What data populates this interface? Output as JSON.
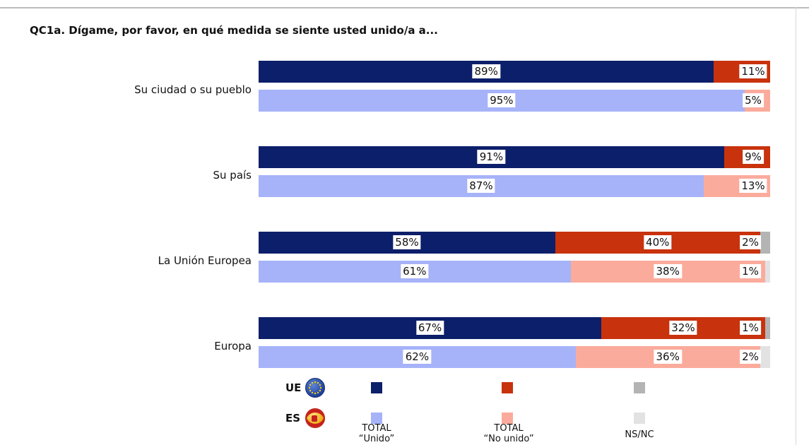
{
  "chart_data": {
    "type": "bar",
    "orientation": "horizontal",
    "stacked": true,
    "title": "QC1a. Dígame, por favor, en qué medida se siente usted unido/a a...",
    "categories": [
      "Su ciudad o su pueblo",
      "Su país",
      "La Unión Europea",
      "Europa"
    ],
    "groups": [
      "UE",
      "ES"
    ],
    "series": [
      {
        "name": "TOTAL \"Unido\"",
        "values": {
          "UE": [
            89,
            91,
            58,
            67
          ],
          "ES": [
            95,
            87,
            61,
            62
          ]
        }
      },
      {
        "name": "TOTAL \"No unido\"",
        "values": {
          "UE": [
            11,
            9,
            40,
            32
          ],
          "ES": [
            5,
            13,
            38,
            36
          ]
        }
      },
      {
        "name": "NS/NC",
        "values": {
          "UE": [
            0,
            0,
            2,
            1
          ],
          "ES": [
            0,
            0,
            1,
            2
          ]
        }
      }
    ],
    "value_labels": {
      "UE": [
        [
          "89%",
          "11%",
          ""
        ],
        [
          "91%",
          "9%",
          ""
        ],
        [
          "58%",
          "40%",
          "2%"
        ],
        [
          "67%",
          "32%",
          "1%"
        ]
      ],
      "ES": [
        [
          "95%",
          "5%",
          ""
        ],
        [
          "87%",
          "13%",
          ""
        ],
        [
          "61%",
          "38%",
          "1%"
        ],
        [
          "62%",
          "36%",
          "2%"
        ]
      ]
    },
    "xlim": [
      0,
      100
    ],
    "legend": {
      "position": "bottom",
      "rows": [
        {
          "code": "UE",
          "flag": "eu-flag-icon"
        },
        {
          "code": "ES",
          "flag": "spain-flag-icon"
        }
      ],
      "labels": [
        [
          "TOTAL",
          "“Unido”"
        ],
        [
          "TOTAL",
          "“No unido”"
        ],
        [
          "NS/NC"
        ]
      ]
    },
    "colors": {
      "UE": [
        "#0c1f6a",
        "#c8320c",
        "#b4b4b4"
      ],
      "ES": [
        "#a6b3f9",
        "#fbab9c",
        "#e2e2e2"
      ]
    }
  }
}
